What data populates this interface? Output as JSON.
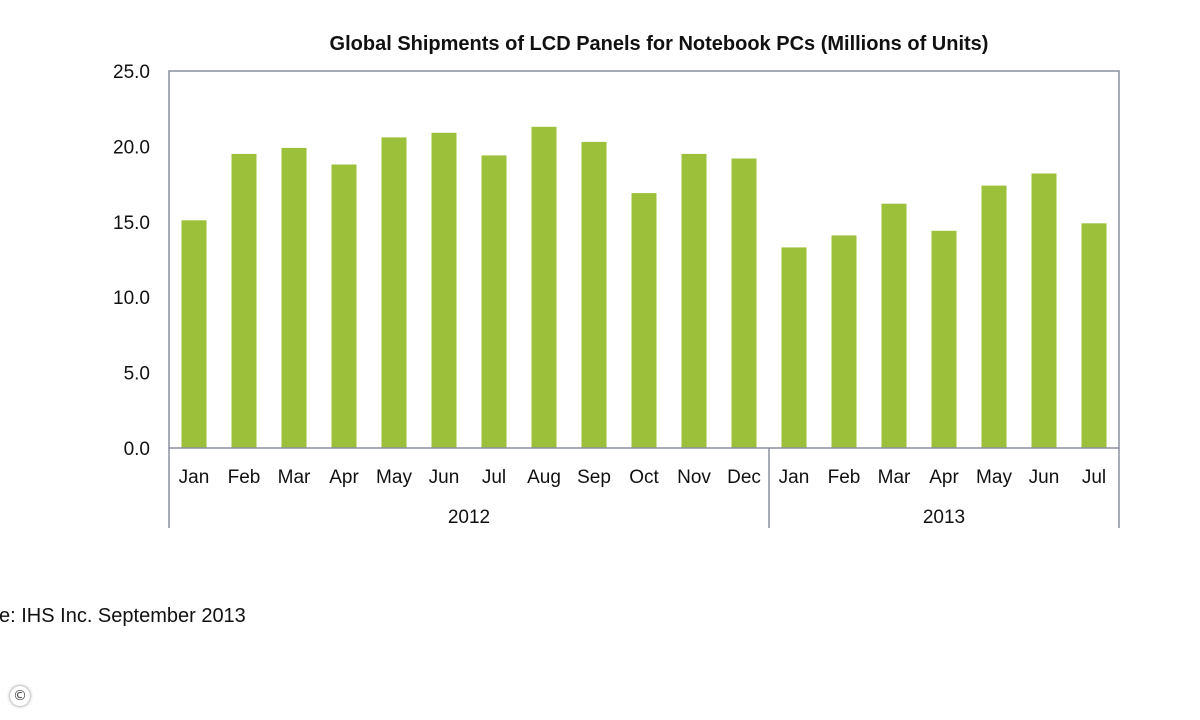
{
  "chart_data": {
    "type": "bar",
    "title": "Global Shipments of LCD Panels for Notebook PCs (Millions of Units)",
    "xlabel": "",
    "ylabel": "",
    "ylim": [
      0,
      25
    ],
    "yticks": [
      "0.0",
      "5.0",
      "10.0",
      "15.0",
      "20.0",
      "25.0"
    ],
    "grid": false,
    "legend": "none",
    "bar_color": "#9dc03b",
    "categories": [
      "Jan",
      "Feb",
      "Mar",
      "Apr",
      "May",
      "Jun",
      "Jul",
      "Aug",
      "Sep",
      "Oct",
      "Nov",
      "Dec",
      "Jan",
      "Feb",
      "Mar",
      "Apr",
      "May",
      "Jun",
      "Jul"
    ],
    "groups": [
      {
        "label": "2012",
        "count": 12
      },
      {
        "label": "2013",
        "count": 7
      }
    ],
    "values": [
      15.1,
      19.5,
      19.9,
      18.8,
      20.6,
      20.9,
      19.4,
      21.3,
      20.3,
      16.9,
      19.5,
      19.2,
      13.3,
      14.1,
      16.2,
      14.4,
      17.4,
      18.2,
      14.9
    ]
  },
  "footer": {
    "source": "e: IHS Inc. September 2013"
  },
  "badge": {
    "symbol": "©"
  }
}
